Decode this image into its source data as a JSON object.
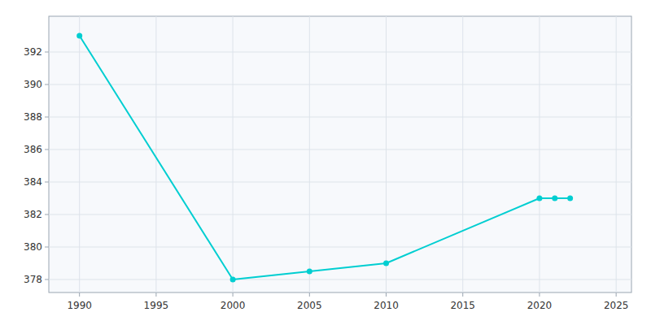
{
  "chart_data": {
    "type": "line",
    "x": [
      1990,
      2000,
      2005,
      2010,
      2020,
      2021,
      2022
    ],
    "values": [
      393,
      378,
      378.5,
      379,
      383,
      383,
      383
    ],
    "color": "#00CED1",
    "marker": "circle",
    "xlim": [
      1988,
      2026
    ],
    "ylim": [
      377.2,
      394.2
    ],
    "xticks": [
      1990,
      1995,
      2000,
      2005,
      2010,
      2015,
      2020,
      2025
    ],
    "yticks": [
      378,
      380,
      382,
      384,
      386,
      388,
      390,
      392
    ],
    "grid": true
  }
}
